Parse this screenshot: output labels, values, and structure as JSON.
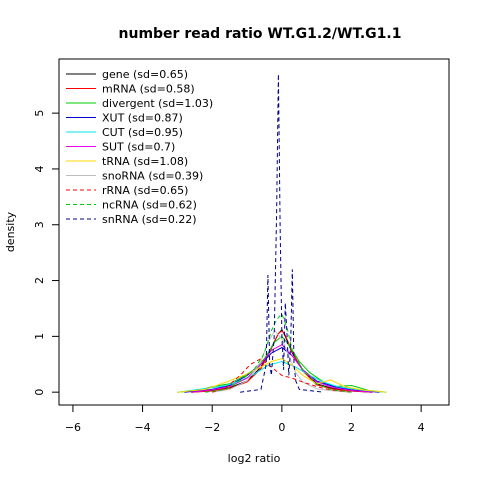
{
  "chart_data": {
    "type": "line",
    "title": "number read ratio WT.G1.2/WT.G1.1",
    "xlabel": "log2 ratio",
    "ylabel": "density",
    "xlim": [
      -6.4,
      4.8
    ],
    "ylim": [
      -0.23,
      5.97
    ],
    "xticks": [
      -6,
      -4,
      -2,
      0,
      2,
      4
    ],
    "yticks": [
      0,
      1,
      2,
      3,
      4,
      5
    ],
    "grid": false,
    "legend_position": "top-left",
    "series": [
      {
        "name": "gene (sd=0.65)",
        "color": "#000000",
        "dash": "solid",
        "x": [
          -2.6,
          -2,
          -1.5,
          -1,
          -0.6,
          -0.3,
          -0.1,
          0,
          0.1,
          0.3,
          0.6,
          1,
          1.5,
          2,
          2.6
        ],
        "y": [
          0,
          0.03,
          0.08,
          0.2,
          0.45,
          0.8,
          1.05,
          1.12,
          1.0,
          0.7,
          0.4,
          0.15,
          0.06,
          0.02,
          0
        ]
      },
      {
        "name": "mRNA (sd=0.58)",
        "color": "#ff0000",
        "dash": "solid",
        "x": [
          -2.6,
          -2,
          -1.5,
          -1,
          -0.6,
          -0.3,
          -0.1,
          0,
          0.1,
          0.3,
          0.6,
          1,
          1.5,
          2,
          2.6
        ],
        "y": [
          0,
          0.02,
          0.07,
          0.18,
          0.42,
          0.78,
          1.05,
          1.1,
          1.02,
          0.72,
          0.38,
          0.13,
          0.05,
          0.02,
          0
        ]
      },
      {
        "name": "divergent (sd=1.03)",
        "color": "#00cd00",
        "dash": "solid",
        "x": [
          -3,
          -2.4,
          -2,
          -1.5,
          -1.2,
          -0.8,
          -0.5,
          -0.2,
          0,
          0.2,
          0.5,
          0.8,
          1.2,
          1.5,
          2,
          2.5,
          3
        ],
        "y": [
          0,
          0.03,
          0.1,
          0.15,
          0.25,
          0.4,
          0.6,
          0.9,
          1.0,
          0.85,
          0.55,
          0.35,
          0.18,
          0.1,
          0.12,
          0.03,
          0
        ]
      },
      {
        "name": "XUT (sd=0.87)",
        "color": "#0000cd",
        "dash": "solid",
        "x": [
          -2.8,
          -2,
          -1.5,
          -1,
          -0.6,
          -0.3,
          0,
          0.3,
          0.6,
          1,
          1.5,
          2,
          2.8
        ],
        "y": [
          0,
          0.05,
          0.12,
          0.3,
          0.5,
          0.7,
          0.8,
          0.65,
          0.4,
          0.2,
          0.1,
          0.04,
          0
        ]
      },
      {
        "name": "CUT (sd=0.95)",
        "color": "#00e5ee",
        "dash": "solid",
        "x": [
          -3,
          -2.4,
          -2,
          -1.6,
          -1.2,
          -0.8,
          -0.4,
          0,
          0.4,
          0.8,
          1.2,
          1.6,
          2,
          2.4,
          3
        ],
        "y": [
          0,
          0.05,
          0.08,
          0.12,
          0.2,
          0.32,
          0.48,
          0.55,
          0.45,
          0.3,
          0.18,
          0.1,
          0.06,
          0.03,
          0
        ]
      },
      {
        "name": "SUT (sd=0.7)",
        "color": "#ee00ee",
        "dash": "solid",
        "x": [
          -2.6,
          -2,
          -1.5,
          -1,
          -0.6,
          -0.3,
          0,
          0.3,
          0.6,
          1,
          1.5,
          2,
          2.6
        ],
        "y": [
          0,
          0.04,
          0.1,
          0.25,
          0.5,
          0.75,
          0.85,
          0.65,
          0.4,
          0.18,
          0.08,
          0.03,
          0
        ]
      },
      {
        "name": "tRNA (sd=1.08)",
        "color": "#ffd700",
        "dash": "solid",
        "x": [
          -3,
          -2.2,
          -1.6,
          -1.1,
          -0.6,
          -0.3,
          0,
          0.3,
          0.6,
          1,
          1.4,
          1.8,
          2.3,
          3
        ],
        "y": [
          0,
          0.05,
          0.18,
          0.3,
          0.45,
          0.55,
          0.6,
          0.48,
          0.3,
          0.15,
          0.22,
          0.1,
          0.04,
          0
        ]
      },
      {
        "name": "snoRNA (sd=0.39)",
        "color": "#bebebe",
        "dash": "solid",
        "x": [
          -2,
          -1.5,
          -1,
          -0.6,
          -0.4,
          -0.2,
          0,
          0.2,
          0.4,
          0.6,
          1,
          1.5,
          2
        ],
        "y": [
          0,
          0.05,
          0.2,
          0.55,
          0.9,
          1.1,
          0.95,
          0.65,
          0.35,
          0.18,
          0.06,
          0.02,
          0
        ]
      },
      {
        "name": "rRNA (sd=0.65)",
        "color": "#ff0000",
        "dash": "dashed",
        "x": [
          -2,
          -1.6,
          -1.2,
          -0.9,
          -0.6,
          -0.3,
          0,
          0.3,
          0.6,
          1,
          1.4,
          2
        ],
        "y": [
          0,
          0.08,
          0.3,
          0.5,
          0.6,
          0.45,
          0.3,
          0.25,
          0.18,
          0.1,
          0.04,
          0
        ]
      },
      {
        "name": "ncRNA (sd=0.62)",
        "color": "#00cd00",
        "dash": "dashed",
        "x": [
          -2.2,
          -1.6,
          -1.2,
          -0.8,
          -0.5,
          -0.3,
          -0.15,
          0,
          0.15,
          0.3,
          0.6,
          1,
          1.4,
          2
        ],
        "y": [
          0,
          0.05,
          0.2,
          0.4,
          0.7,
          1.1,
          1.3,
          1.4,
          1.15,
          0.75,
          0.4,
          0.15,
          0.05,
          0
        ]
      },
      {
        "name": "snRNA (sd=0.22)",
        "color": "#00008b",
        "dash": "dashed",
        "x": [
          -1.2,
          -0.6,
          -0.45,
          -0.4,
          -0.35,
          -0.3,
          -0.22,
          -0.15,
          -0.1,
          -0.05,
          0,
          0.05,
          0.1,
          0.15,
          0.2,
          0.25,
          0.3,
          0.35,
          0.4,
          0.5,
          1.2
        ],
        "y": [
          0,
          0.05,
          0.5,
          2.1,
          0.5,
          0.3,
          1.0,
          3.2,
          5.7,
          3.0,
          1.0,
          0.4,
          1.6,
          1.0,
          0.3,
          0.8,
          2.2,
          0.5,
          0.2,
          0.05,
          0
        ]
      }
    ]
  }
}
